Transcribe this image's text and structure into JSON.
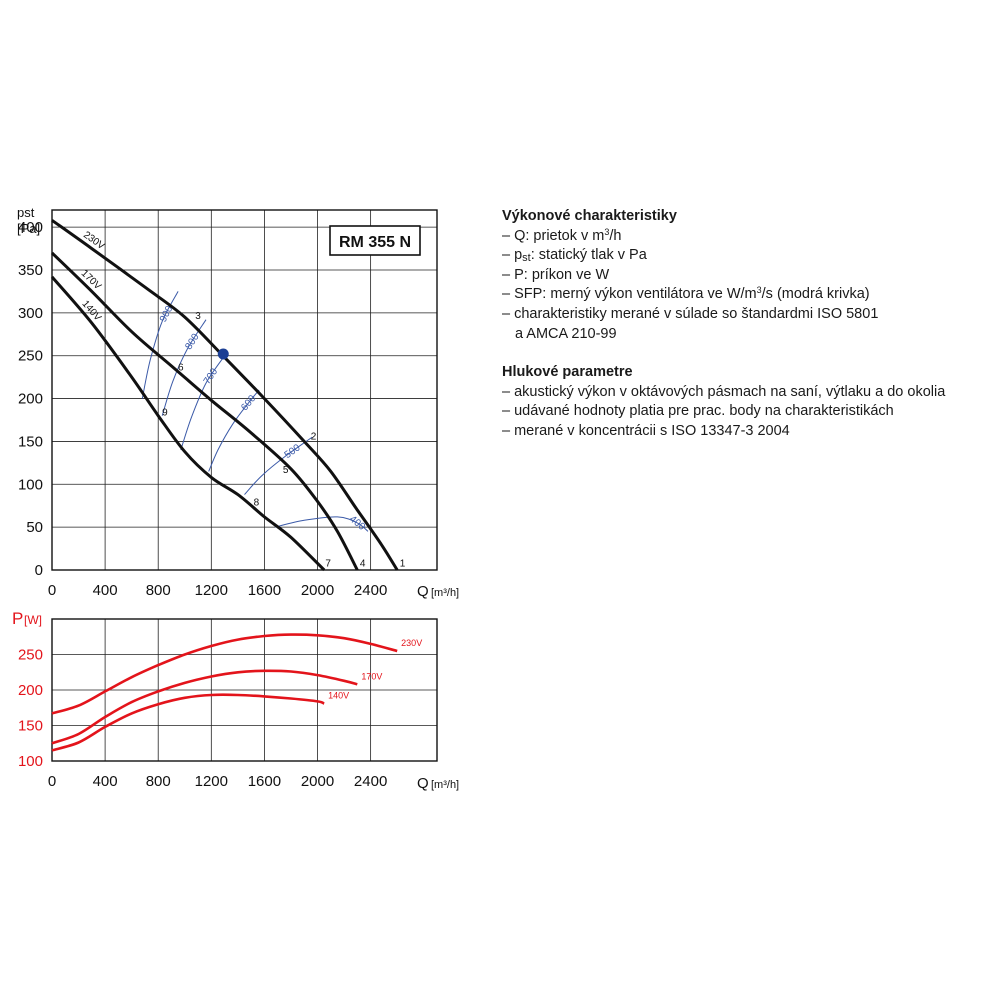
{
  "chart_data": [
    {
      "type": "line",
      "title": "RM 355 N",
      "ylabel_line1": "pst",
      "ylabel_line2": "[Pa]",
      "xlabel": "Q",
      "xunit": "[m³/h]",
      "xlim": [
        0,
        2900
      ],
      "ylim": [
        0,
        420
      ],
      "xticks": [
        0,
        400,
        800,
        1200,
        1600,
        2000,
        2400
      ],
      "yticks": [
        0,
        50,
        100,
        150,
        200,
        250,
        300,
        350,
        400
      ],
      "grid": true,
      "series": [
        {
          "name": "230V",
          "points": [
            [
              0,
              408
            ],
            [
              300,
              375
            ],
            [
              700,
              330
            ],
            [
              1000,
              295
            ],
            [
              1300,
              248
            ],
            [
              1600,
              200
            ],
            [
              1900,
              150
            ],
            [
              2100,
              115
            ],
            [
              2300,
              70
            ],
            [
              2480,
              30
            ],
            [
              2600,
              0
            ]
          ]
        },
        {
          "name": "170V",
          "points": [
            [
              0,
              370
            ],
            [
              300,
              325
            ],
            [
              600,
              278
            ],
            [
              900,
              238
            ],
            [
              1200,
              198
            ],
            [
              1500,
              160
            ],
            [
              1800,
              118
            ],
            [
              2000,
              80
            ],
            [
              2150,
              45
            ],
            [
              2300,
              0
            ]
          ]
        },
        {
          "name": "140V",
          "points": [
            [
              0,
              342
            ],
            [
              300,
              288
            ],
            [
              600,
              225
            ],
            [
              800,
              180
            ],
            [
              1000,
              138
            ],
            [
              1200,
              108
            ],
            [
              1400,
              88
            ],
            [
              1600,
              62
            ],
            [
              1800,
              38
            ],
            [
              2050,
              0
            ]
          ]
        }
      ],
      "sfp_curves": [
        {
          "label": "900",
          "points": [
            [
              680,
              200
            ],
            [
              740,
              245
            ],
            [
              830,
              290
            ],
            [
              950,
              325
            ]
          ]
        },
        {
          "label": "800",
          "points": [
            [
              830,
              180
            ],
            [
              910,
              220
            ],
            [
              1020,
              258
            ],
            [
              1160,
              292
            ]
          ]
        },
        {
          "label": "700",
          "points": [
            [
              970,
              140
            ],
            [
              1050,
              178
            ],
            [
              1160,
              218
            ],
            [
              1300,
              250
            ]
          ]
        },
        {
          "label": "600",
          "points": [
            [
              1180,
              115
            ],
            [
              1250,
              140
            ],
            [
              1360,
              170
            ],
            [
              1480,
              195
            ],
            [
              1560,
              210
            ]
          ]
        },
        {
          "label": "500",
          "points": [
            [
              1450,
              88
            ],
            [
              1580,
              110
            ],
            [
              1760,
              133
            ],
            [
              1960,
              155
            ]
          ]
        },
        {
          "label": "400",
          "points": [
            [
              1680,
              50
            ],
            [
              1900,
              58
            ],
            [
              2150,
              62
            ],
            [
              2300,
              55
            ],
            [
              2380,
              45
            ]
          ]
        }
      ],
      "sfp_color": "#3b5aa8",
      "operating_point": {
        "x": 1290,
        "y": 252,
        "color": "#1c3f94"
      },
      "point_labels": [
        {
          "label": "1",
          "x": 2640,
          "y": 4
        },
        {
          "label": "2",
          "x": 1970,
          "y": 152
        },
        {
          "label": "3",
          "x": 1100,
          "y": 293
        },
        {
          "label": "4",
          "x": 2340,
          "y": 4
        },
        {
          "label": "5",
          "x": 1760,
          "y": 113
        },
        {
          "label": "6",
          "x": 970,
          "y": 233
        },
        {
          "label": "7",
          "x": 2080,
          "y": 4
        },
        {
          "label": "8",
          "x": 1540,
          "y": 75
        },
        {
          "label": "9",
          "x": 850,
          "y": 180
        }
      ]
    },
    {
      "type": "line",
      "ylabel": "P",
      "yunit": "[W]",
      "xlabel": "Q",
      "xunit": "[m³/h]",
      "xlim": [
        0,
        2900
      ],
      "ylim": [
        100,
        300
      ],
      "xticks": [
        0,
        400,
        800,
        1200,
        1600,
        2000,
        2400
      ],
      "yticks": [
        100,
        150,
        200,
        250
      ],
      "grid": true,
      "color": "#e3141b",
      "series": [
        {
          "name": "230V",
          "points": [
            [
              0,
              167
            ],
            [
              200,
              178
            ],
            [
              400,
              198
            ],
            [
              600,
              218
            ],
            [
              800,
              235
            ],
            [
              1000,
              250
            ],
            [
              1200,
              262
            ],
            [
              1400,
              271
            ],
            [
              1600,
              276
            ],
            [
              1800,
              278
            ],
            [
              2000,
              277
            ],
            [
              2200,
              273
            ],
            [
              2400,
              265
            ],
            [
              2600,
              255
            ]
          ]
        },
        {
          "name": "170V",
          "points": [
            [
              0,
              125
            ],
            [
              200,
              138
            ],
            [
              400,
              162
            ],
            [
              600,
              183
            ],
            [
              800,
              198
            ],
            [
              1000,
              210
            ],
            [
              1200,
              219
            ],
            [
              1400,
              225
            ],
            [
              1600,
              227
            ],
            [
              1800,
              226
            ],
            [
              2000,
              221
            ],
            [
              2200,
              213
            ],
            [
              2300,
              208
            ]
          ]
        },
        {
          "name": "140V",
          "points": [
            [
              0,
              115
            ],
            [
              200,
              126
            ],
            [
              400,
              148
            ],
            [
              600,
              167
            ],
            [
              800,
              180
            ],
            [
              1000,
              189
            ],
            [
              1200,
              193
            ],
            [
              1400,
              193
            ],
            [
              1600,
              191
            ],
            [
              1800,
              188
            ],
            [
              2000,
              184
            ],
            [
              2050,
              181
            ]
          ]
        }
      ]
    }
  ],
  "text": {
    "perf_title": "Výkonové charakteristiky",
    "perf_items": [
      {
        "a": "– Q: prietok v m",
        "sup": "3",
        "b": "/h"
      },
      {
        "a": "– p",
        "sub": "st",
        "b": ": statický tlak v Pa"
      },
      {
        "a": "– P: príkon ve W"
      },
      {
        "a": "– SFP: merný výkon ventilátora ve W/m",
        "sup": "3",
        "b": "/s (modrá krivka)"
      },
      {
        "a": "– charakteristiky merané v súlade so štandardmi ISO 5801"
      }
    ],
    "perf_cont": "a AMCA 210-99",
    "noise_title": "Hlukové parametre",
    "noise_items": [
      "– akustický výkon v oktávových pásmach na saní, výtlaku a do okolia",
      "– udávané hodnoty platia pre prac. body na charakteristikách",
      "– merané v koncentrácii s ISO 13347-3 2004"
    ]
  }
}
